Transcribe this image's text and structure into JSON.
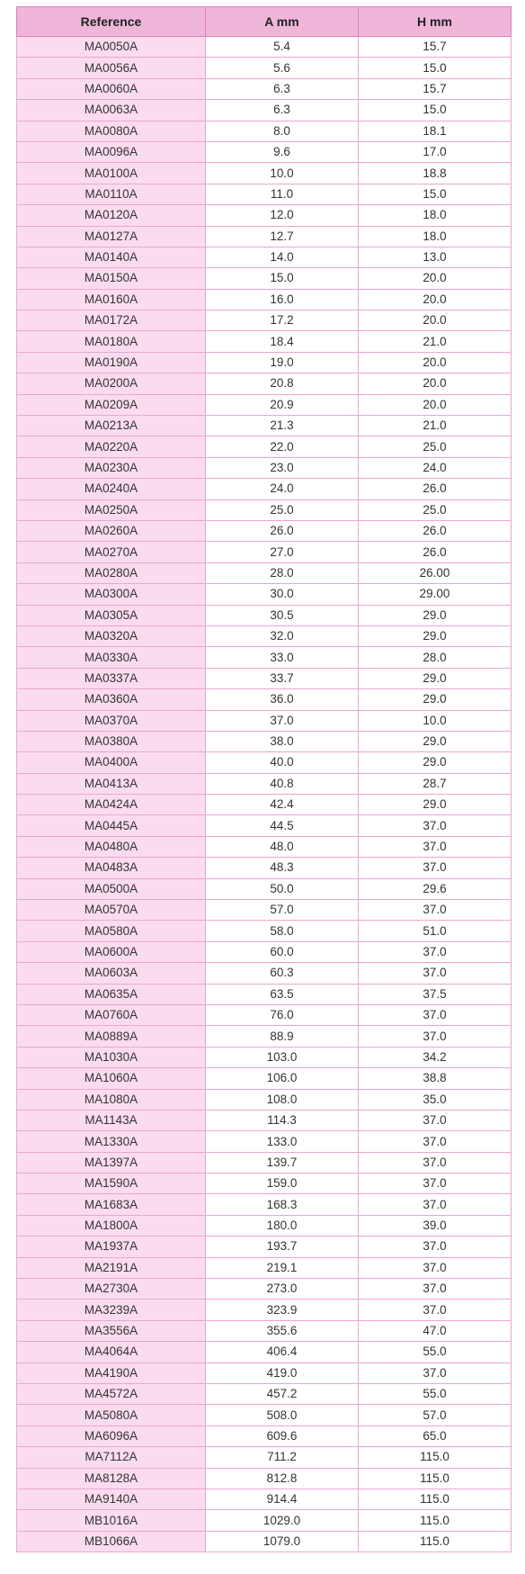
{
  "table": {
    "headers": [
      "Reference",
      "A mm",
      "H mm"
    ],
    "rows": [
      [
        "MA0050A",
        "5.4",
        "15.7"
      ],
      [
        "MA0056A",
        "5.6",
        "15.0"
      ],
      [
        "MA0060A",
        "6.3",
        "15.7"
      ],
      [
        "MA0063A",
        "6.3",
        "15.0"
      ],
      [
        "MA0080A",
        "8.0",
        "18.1"
      ],
      [
        "MA0096A",
        "9.6",
        "17.0"
      ],
      [
        "MA0100A",
        "10.0",
        "18.8"
      ],
      [
        "MA0110A",
        "11.0",
        "15.0"
      ],
      [
        "MA0120A",
        "12.0",
        "18.0"
      ],
      [
        "MA0127A",
        "12.7",
        "18.0"
      ],
      [
        "MA0140A",
        "14.0",
        "13.0"
      ],
      [
        "MA0150A",
        "15.0",
        "20.0"
      ],
      [
        "MA0160A",
        "16.0",
        "20.0"
      ],
      [
        "MA0172A",
        "17.2",
        "20.0"
      ],
      [
        "MA0180A",
        "18.4",
        "21.0"
      ],
      [
        "MA0190A",
        "19.0",
        "20.0"
      ],
      [
        "MA0200A",
        "20.8",
        "20.0"
      ],
      [
        "MA0209A",
        "20.9",
        "20.0"
      ],
      [
        "MA0213A",
        "21.3",
        "21.0"
      ],
      [
        "MA0220A",
        "22.0",
        "25.0"
      ],
      [
        "MA0230A",
        "23.0",
        "24.0"
      ],
      [
        "MA0240A",
        "24.0",
        "26.0"
      ],
      [
        "MA0250A",
        "25.0",
        "25.0"
      ],
      [
        "MA0260A",
        "26.0",
        "26.0"
      ],
      [
        "MA0270A",
        "27.0",
        "26.0"
      ],
      [
        "MA0280A",
        "28.0",
        "26.00"
      ],
      [
        "MA0300A",
        "30.0",
        "29.00"
      ],
      [
        "MA0305A",
        "30.5",
        "29.0"
      ],
      [
        "MA0320A",
        "32.0",
        "29.0"
      ],
      [
        "MA0330A",
        "33.0",
        "28.0"
      ],
      [
        "MA0337A",
        "33.7",
        "29.0"
      ],
      [
        "MA0360A",
        "36.0",
        "29.0"
      ],
      [
        "MA0370A",
        "37.0",
        "10.0"
      ],
      [
        "MA0380A",
        "38.0",
        "29.0"
      ],
      [
        "MA0400A",
        "40.0",
        "29.0"
      ],
      [
        "MA0413A",
        "40.8",
        "28.7"
      ],
      [
        "MA0424A",
        "42.4",
        "29.0"
      ],
      [
        "MA0445A",
        "44.5",
        "37.0"
      ],
      [
        "MA0480A",
        "48.0",
        "37.0"
      ],
      [
        "MA0483A",
        "48.3",
        "37.0"
      ],
      [
        "MA0500A",
        "50.0",
        "29.6"
      ],
      [
        "MA0570A",
        "57.0",
        "37.0"
      ],
      [
        "MA0580A",
        "58.0",
        "51.0"
      ],
      [
        "MA0600A",
        "60.0",
        "37.0"
      ],
      [
        "MA0603A",
        "60.3",
        "37.0"
      ],
      [
        "MA0635A",
        "63.5",
        "37.5"
      ],
      [
        "MA0760A",
        "76.0",
        "37.0"
      ],
      [
        "MA0889A",
        "88.9",
        "37.0"
      ],
      [
        "MA1030A",
        "103.0",
        "34.2"
      ],
      [
        "MA1060A",
        "106.0",
        "38.8"
      ],
      [
        "MA1080A",
        "108.0",
        "35.0"
      ],
      [
        "MA1143A",
        "114.3",
        "37.0"
      ],
      [
        "MA1330A",
        "133.0",
        "37.0"
      ],
      [
        "MA1397A",
        "139.7",
        "37.0"
      ],
      [
        "MA1590A",
        "159.0",
        "37.0"
      ],
      [
        "MA1683A",
        "168.3",
        "37.0"
      ],
      [
        "MA1800A",
        "180.0",
        "39.0"
      ],
      [
        "MA1937A",
        "193.7",
        "37.0"
      ],
      [
        "MA2191A",
        "219.1",
        "37.0"
      ],
      [
        "MA2730A",
        "273.0",
        "37.0"
      ],
      [
        "MA3239A",
        "323.9",
        "37.0"
      ],
      [
        "MA3556A",
        "355.6",
        "47.0"
      ],
      [
        "MA4064A",
        "406.4",
        "55.0"
      ],
      [
        "MA4190A",
        "419.0",
        "37.0"
      ],
      [
        "MA4572A",
        "457.2",
        "55.0"
      ],
      [
        "MA5080A",
        "508.0",
        "57.0"
      ],
      [
        "MA6096A",
        "609.6",
        "65.0"
      ],
      [
        "MA7112A",
        "711.2",
        "115.0"
      ],
      [
        "MA8128A",
        "812.8",
        "115.0"
      ],
      [
        "MA9140A",
        "914.4",
        "115.0"
      ],
      [
        "MB1016A",
        "1029.0",
        "115.0"
      ],
      [
        "MB1066A",
        "1079.0",
        "115.0"
      ]
    ]
  }
}
